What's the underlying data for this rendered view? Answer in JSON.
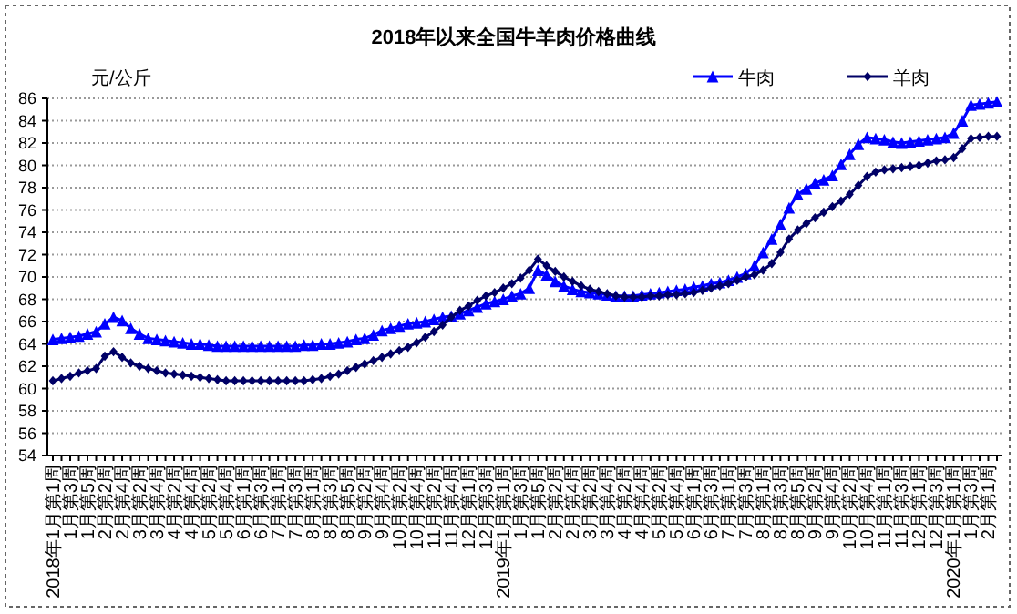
{
  "chart_data": {
    "type": "line",
    "title": "2018年以来全国牛羊肉价格曲线",
    "ylabel": "元/公斤",
    "categories": [
      "2018年1月第1周",
      null,
      "1月第3周",
      null,
      "1月第5周",
      null,
      "2月第2周",
      null,
      "2月第4周",
      null,
      "3月第2周",
      null,
      "3月第4周",
      null,
      "4月第2周",
      null,
      "4月第4周",
      null,
      "5月第2周",
      null,
      "5月第4周",
      null,
      "6月第1周",
      null,
      "6月第3周",
      null,
      "7月第1周",
      null,
      "7月第3周",
      null,
      "8月第1周",
      null,
      "8月第3周",
      null,
      "8月第5周",
      null,
      "9月第2周",
      null,
      "9月第4周",
      null,
      "10月第2周",
      null,
      "10月第4周",
      null,
      "11月第2周",
      null,
      "11月第4周",
      null,
      "12月第1周",
      null,
      "12月第3周",
      null,
      "2019年1月第1周",
      null,
      "1月第3周",
      null,
      "1月第5周",
      null,
      "2月第2周",
      null,
      "2月第4周",
      null,
      "3月第2周",
      null,
      "3月第4周",
      null,
      "4月第2周",
      null,
      "4月第4周",
      null,
      "5月第2周",
      null,
      "5月第4周",
      null,
      "6月第1周",
      null,
      "6月第3周",
      null,
      "7月第1周",
      null,
      "7月第3周",
      null,
      "8月第1周",
      null,
      "8月第3周",
      null,
      "8月第5周",
      null,
      "9月第2周",
      null,
      "9月第4周",
      null,
      "10月第2周",
      null,
      "10月第4周",
      null,
      "11月第1周",
      null,
      "11月第3周",
      null,
      "12月第1周",
      null,
      "12月第3周",
      null,
      "2020年1月第1周",
      null,
      "1月第3周",
      null,
      "2月第1周",
      null
    ],
    "series": [
      {
        "name": "牛肉",
        "color": "#0000ff",
        "marker": "triangle",
        "values": [
          64.4,
          64.5,
          64.6,
          64.7,
          64.9,
          65.1,
          65.8,
          66.4,
          66.1,
          65.4,
          64.9,
          64.5,
          64.4,
          64.3,
          64.2,
          64.1,
          64.0,
          64.0,
          63.9,
          63.8,
          63.8,
          63.8,
          63.8,
          63.8,
          63.8,
          63.8,
          63.8,
          63.8,
          63.8,
          63.9,
          63.9,
          64.0,
          64.0,
          64.1,
          64.2,
          64.4,
          64.5,
          64.8,
          65.2,
          65.4,
          65.6,
          65.8,
          65.9,
          66.0,
          66.2,
          66.4,
          66.5,
          66.7,
          67.0,
          67.3,
          67.6,
          67.8,
          68.0,
          68.3,
          68.5,
          69.0,
          70.6,
          70.2,
          69.6,
          69.2,
          68.9,
          68.7,
          68.6,
          68.5,
          68.4,
          68.3,
          68.3,
          68.3,
          68.4,
          68.5,
          68.6,
          68.7,
          68.8,
          68.9,
          69.1,
          69.2,
          69.4,
          69.5,
          69.7,
          70.0,
          70.3,
          71.0,
          72.2,
          73.4,
          74.7,
          76.2,
          77.4,
          77.9,
          78.4,
          78.7,
          79.1,
          80.1,
          81.0,
          81.9,
          82.5,
          82.4,
          82.3,
          82.1,
          82.0,
          82.1,
          82.2,
          82.3,
          82.4,
          82.5,
          82.9,
          84.0,
          85.4,
          85.5,
          85.6,
          85.7
        ]
      },
      {
        "name": "羊肉",
        "color": "#000066",
        "marker": "diamond",
        "values": [
          60.7,
          60.9,
          61.1,
          61.4,
          61.6,
          61.8,
          62.9,
          63.3,
          62.8,
          62.3,
          62.0,
          61.8,
          61.6,
          61.4,
          61.3,
          61.2,
          61.1,
          61.0,
          60.9,
          60.8,
          60.7,
          60.7,
          60.7,
          60.7,
          60.7,
          60.7,
          60.7,
          60.7,
          60.7,
          60.7,
          60.8,
          60.9,
          61.1,
          61.3,
          61.6,
          61.9,
          62.2,
          62.5,
          62.8,
          63.1,
          63.4,
          63.7,
          64.1,
          64.6,
          65.1,
          65.7,
          66.4,
          67.0,
          67.4,
          67.9,
          68.3,
          68.6,
          69.0,
          69.4,
          69.9,
          70.6,
          71.6,
          71.0,
          70.5,
          70.0,
          69.6,
          69.2,
          68.9,
          68.7,
          68.5,
          68.3,
          68.2,
          68.2,
          68.2,
          68.3,
          68.3,
          68.4,
          68.4,
          68.5,
          68.6,
          68.8,
          69.0,
          69.2,
          69.4,
          69.7,
          70.0,
          70.2,
          70.6,
          71.2,
          72.2,
          73.4,
          74.2,
          74.8,
          75.3,
          75.8,
          76.3,
          76.8,
          77.4,
          78.2,
          79.0,
          79.4,
          79.6,
          79.7,
          79.8,
          79.9,
          80.0,
          80.2,
          80.4,
          80.5,
          80.7,
          81.5,
          82.4,
          82.5,
          82.6,
          82.6
        ]
      }
    ],
    "ylim": [
      54,
      86
    ],
    "yticks": [
      54,
      56,
      58,
      60,
      62,
      64,
      66,
      68,
      70,
      72,
      74,
      76,
      78,
      80,
      82,
      84,
      86
    ],
    "grid": "y",
    "legend": "top right",
    "line_style": "solid"
  }
}
